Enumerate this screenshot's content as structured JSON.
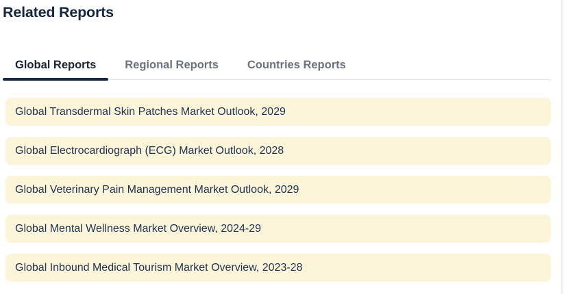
{
  "page": {
    "title": "Related Reports"
  },
  "tabs": {
    "items": [
      {
        "label": "Global Reports",
        "active": true
      },
      {
        "label": "Regional Reports",
        "active": false
      },
      {
        "label": "Countries Reports",
        "active": false
      }
    ]
  },
  "reports": {
    "items": [
      "Global Transdermal Skin Patches Market Outlook, 2029",
      "Global Electrocardiograph (ECG) Market Outlook, 2028",
      "Global Veterinary Pain Management Market Outlook, 2029",
      "Global Mental Wellness Market Overview, 2024-29",
      "Global Inbound Medical Tourism Market Overview, 2023-28"
    ]
  },
  "colors": {
    "title_navy": "#15263f",
    "active_tab_text": "#1a2433",
    "inactive_tab_text": "#6b7280",
    "active_underline": "#172a41",
    "row_background": "#fdf5da",
    "row_text": "#1d3150",
    "tab_border": "#e5e7eb"
  }
}
